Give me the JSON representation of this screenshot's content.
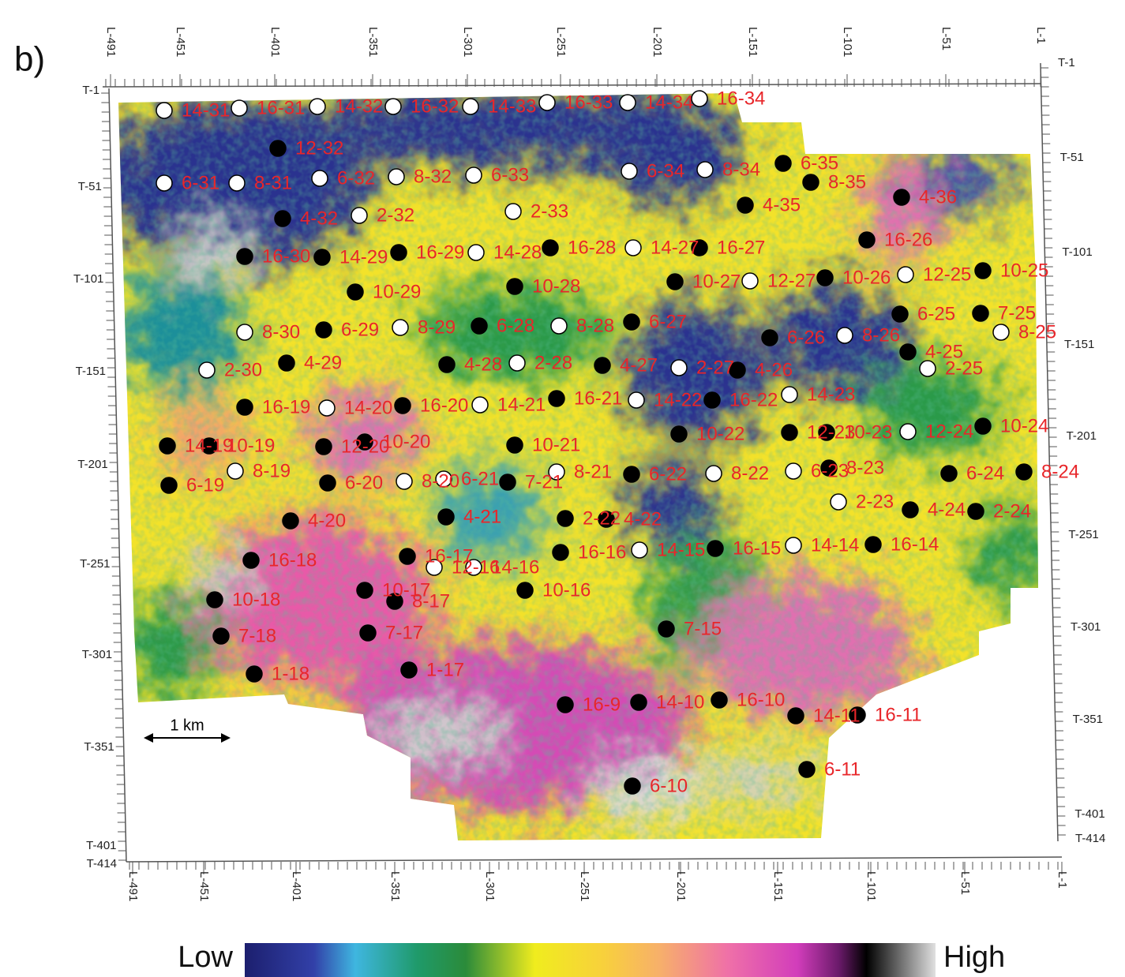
{
  "panel_label": "b)",
  "axes": {
    "top": [
      "L-491",
      "L-451",
      "L-401",
      "L-351",
      "L-301",
      "L-251",
      "L-201",
      "L-151",
      "L-101",
      "L-51",
      "L-1"
    ],
    "bottom": [
      "L-491",
      "L-451",
      "L-401",
      "L-351",
      "L-301",
      "L-251",
      "L-201",
      "L-151",
      "L-101",
      "L-51",
      "L-1"
    ],
    "left": [
      "T-1",
      "T-51",
      "T-101",
      "T-151",
      "T-201",
      "T-251",
      "T-301",
      "T-351",
      "T-401",
      "T-414"
    ],
    "right": [
      "T-1",
      "T-51",
      "T-101",
      "T-151",
      "T-201",
      "T-251",
      "T-301",
      "T-351",
      "T-401",
      "T-414"
    ]
  },
  "wells": [
    "14-31",
    "16-31",
    "14-32",
    "16-32",
    "14-33",
    "16-33",
    "14-34",
    "16-34",
    "12-32",
    "6-31",
    "8-31",
    "6-32",
    "8-32",
    "6-33",
    "6-34",
    "8-34",
    "6-35",
    "8-35",
    "4-36",
    "4-32",
    "2-32",
    "2-33",
    "4-35",
    "16-26",
    "16-30",
    "14-29",
    "16-29",
    "14-28",
    "16-28",
    "14-27",
    "16-27",
    "10-27",
    "12-27",
    "10-26",
    "12-25",
    "10-25",
    "10-29",
    "10-28",
    "8-30",
    "6-29",
    "8-29",
    "6-28",
    "8-28",
    "6-27",
    "6-26",
    "8-26",
    "6-25",
    "7-25",
    "8-25",
    "4-25",
    "2-25",
    "2-30",
    "4-29",
    "4-28",
    "2-28",
    "4-27",
    "2-27",
    "4-26",
    "16-19",
    "14-20",
    "16-20",
    "14-21",
    "16-21",
    "14-22",
    "16-22",
    "14-23",
    "14-19",
    "10-19",
    "12-20",
    "10-20",
    "10-21",
    "10-22",
    "12-23",
    "10-23",
    "12-24",
    "10-24",
    "6-19",
    "8-19",
    "6-20",
    "8-20",
    "6-21",
    "7-21",
    "8-21",
    "6-22",
    "8-22",
    "6-23",
    "8-23",
    "6-24",
    "8-24",
    "2-23",
    "4-24",
    "2-24",
    "4-20",
    "4-21",
    "2-22",
    "4-22",
    "16-18",
    "16-17",
    "12-16",
    "14-16",
    "16-16",
    "14-15",
    "16-15",
    "14-14",
    "16-14",
    "10-18",
    "10-17",
    "8-17",
    "10-16",
    "7-18",
    "7-17",
    "7-15",
    "1-18",
    "1-17",
    "16-9",
    "14-10",
    "16-10",
    "14-11",
    "16-11",
    "6-11",
    "6-10"
  ],
  "scale_bar": "1 km",
  "colorbar": {
    "low": "Low",
    "high": "High"
  }
}
